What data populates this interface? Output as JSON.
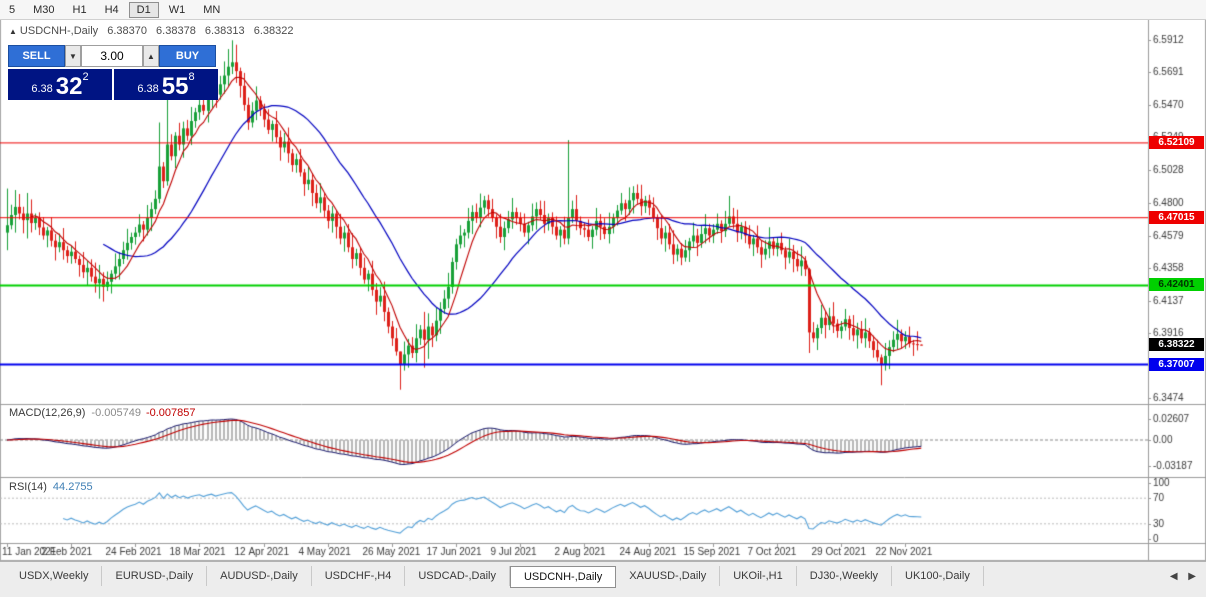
{
  "toolbar": {
    "timeframes": [
      {
        "label": "5",
        "active": false
      },
      {
        "label": "M30",
        "active": false
      },
      {
        "label": "H1",
        "active": false
      },
      {
        "label": "H4",
        "active": false
      },
      {
        "label": "D1",
        "active": true
      },
      {
        "label": "W1",
        "active": false
      },
      {
        "label": "MN",
        "active": false
      }
    ]
  },
  "chart": {
    "symbol_title": "USDCNH-,Daily",
    "ohlc": {
      "open": "6.38370",
      "high": "6.38378",
      "low": "6.38313",
      "close": "6.38322"
    },
    "trade_panel": {
      "sell_label": "SELL",
      "buy_label": "BUY",
      "volume": "3.00",
      "sell_price": {
        "prefix": "6.38",
        "big": "32",
        "sup": "2"
      },
      "buy_price": {
        "prefix": "6.38",
        "big": "55",
        "sup": "8"
      }
    },
    "price_axis": {
      "ticks": [
        {
          "label": "6.5912",
          "value": 6.5912
        },
        {
          "label": "6.5691",
          "value": 6.5691
        },
        {
          "label": "6.5470",
          "value": 6.547
        },
        {
          "label": "6.5249",
          "value": 6.5249
        },
        {
          "label": "6.5028",
          "value": 6.5028
        },
        {
          "label": "6.4800",
          "value": 6.48
        },
        {
          "label": "6.4579",
          "value": 6.4579
        },
        {
          "label": "6.4358",
          "value": 6.4358
        },
        {
          "label": "6.4137",
          "value": 6.4137
        },
        {
          "label": "6.3916",
          "value": 6.3916
        },
        {
          "label": "6.3695",
          "value": 6.3695
        },
        {
          "label": "6.3474",
          "value": 6.3474
        }
      ]
    },
    "hlines": [
      {
        "label": "6.52109",
        "value": 6.52109,
        "color": "#ee0000",
        "text_color": "#ffffff",
        "width": 1
      },
      {
        "label": "6.47015",
        "value": 6.47015,
        "color": "#ee0000",
        "text_color": "#ffffff",
        "width": 1
      },
      {
        "label": "6.42401",
        "value": 6.42401,
        "color": "#00d000",
        "text_color": "#003300",
        "width": 2
      },
      {
        "label": "6.37007",
        "value": 6.37007,
        "color": "#0000ee",
        "text_color": "#ffffff",
        "width": 2
      }
    ],
    "current_price": {
      "label": "6.38322",
      "value": 6.38322,
      "bg": "#000000",
      "text_color": "#ffffff"
    },
    "date_axis": {
      "labels": [
        {
          "text": "11 Jan 2021",
          "index": 0
        },
        {
          "text": "2 Feb 2021",
          "index": 16
        },
        {
          "text": "24 Feb 2021",
          "index": 32
        },
        {
          "text": "18 Mar 2021",
          "index": 48
        },
        {
          "text": "12 Apr 2021",
          "index": 64
        },
        {
          "text": "4 May 2021",
          "index": 80
        },
        {
          "text": "26 May 2021",
          "index": 96
        },
        {
          "text": "17 Jun 2021",
          "index": 112
        },
        {
          "text": "9 Jul 2021",
          "index": 128
        },
        {
          "text": "2 Aug 2021",
          "index": 144
        },
        {
          "text": "24 Aug 2021",
          "index": 160
        },
        {
          "text": "15 Sep 2021",
          "index": 176
        },
        {
          "text": "7 Oct 2021",
          "index": 192
        },
        {
          "text": "29 Oct 2021",
          "index": 208
        },
        {
          "text": "22 Nov 2021",
          "index": 224
        }
      ]
    },
    "colors": {
      "bull": "#18a038",
      "bear": "#dd2019",
      "ma_fast": "#c00000",
      "ma_slow": "#0000c0",
      "hist": "#b8b8b8",
      "macd_line": "#1a1a6e",
      "signal_line": "#c00000",
      "rsi_line": "#53a0d8",
      "axis_text": "#3c3c3c",
      "separator": "#9a9a9a",
      "level_dotted": "#bbbbbb"
    }
  },
  "macd_panel": {
    "label": "MACD(12,26,9)",
    "value_main": "-0.005749",
    "value_signal": "-0.007857",
    "ticks": [
      {
        "label": "0.02607",
        "value": 0.02607
      },
      {
        "label": "0.00",
        "value": 0
      },
      {
        "label": "-0.03187",
        "value": -0.03187
      }
    ]
  },
  "rsi_panel": {
    "label": "RSI(14)",
    "value": "44.2755",
    "ticks": [
      {
        "label": "100",
        "value": 100
      },
      {
        "label": "70",
        "value": 70
      },
      {
        "label": "30",
        "value": 30
      },
      {
        "label": "0",
        "value": 0
      }
    ],
    "levels": [
      70,
      30
    ]
  },
  "tabbar": {
    "tabs": [
      {
        "label": "USDX,Weekly",
        "active": false
      },
      {
        "label": "EURUSD-,Daily",
        "active": false
      },
      {
        "label": "AUDUSD-,Daily",
        "active": false
      },
      {
        "label": "USDCHF-,H4",
        "active": false
      },
      {
        "label": "USDCAD-,Daily",
        "active": false
      },
      {
        "label": "USDCNH-,Daily",
        "active": true
      },
      {
        "label": "XAUUSD-,Daily",
        "active": false
      },
      {
        "label": "UKOil-,H1",
        "active": false
      },
      {
        "label": "DJ30-,Weekly",
        "active": false
      },
      {
        "label": "UK100-,Daily",
        "active": false
      }
    ],
    "scroll_left": "◀",
    "scroll_right": "▶"
  },
  "chart_data": {
    "type": "candlestick",
    "symbol": "USDCNH",
    "timeframe": "Daily",
    "ylim": [
      6.3429,
      6.6055
    ],
    "first_open": 6.46,
    "closes": [
      6.465,
      6.472,
      6.4775,
      6.473,
      6.4685,
      6.473,
      6.4665,
      6.47,
      6.4635,
      6.458,
      6.4615,
      6.4545,
      6.45,
      6.4535,
      6.448,
      6.444,
      6.447,
      6.442,
      6.438,
      6.433,
      6.436,
      6.43,
      6.4255,
      6.4285,
      6.423,
      6.4265,
      6.432,
      6.437,
      6.442,
      6.448,
      6.453,
      6.457,
      6.46,
      6.4655,
      6.462,
      6.47,
      6.476,
      6.483,
      6.505,
      6.495,
      6.52,
      6.512,
      6.526,
      6.52,
      6.531,
      6.526,
      6.536,
      6.542,
      6.547,
      6.543,
      6.552,
      6.558,
      6.554,
      6.561,
      6.567,
      6.573,
      6.576,
      6.57,
      6.56,
      6.547,
      6.535,
      6.543,
      6.55,
      6.544,
      6.537,
      6.53,
      6.534,
      6.525,
      6.518,
      6.522,
      6.514,
      6.506,
      6.51,
      6.501,
      6.493,
      6.496,
      6.487,
      6.48,
      6.484,
      6.475,
      6.468,
      6.473,
      6.464,
      6.456,
      6.46,
      6.45,
      6.442,
      6.446,
      6.436,
      6.428,
      6.432,
      6.421,
      6.413,
      6.417,
      6.406,
      6.396,
      6.388,
      6.379,
      6.37,
      6.377,
      6.383,
      6.378,
      6.388,
      6.394,
      6.387,
      6.396,
      6.39,
      6.4,
      6.408,
      6.415,
      6.423,
      6.44,
      6.452,
      6.458,
      6.46,
      6.468,
      6.474,
      6.47,
      6.477,
      6.482,
      6.476,
      6.47,
      6.464,
      6.457,
      6.463,
      6.469,
      6.474,
      6.47,
      6.466,
      6.46,
      6.465,
      6.471,
      6.476,
      6.472,
      6.466,
      6.47,
      6.464,
      6.458,
      6.462,
      6.456,
      6.47,
      6.476,
      6.468,
      6.463,
      6.462,
      6.457,
      6.462,
      6.468,
      6.464,
      6.459,
      6.464,
      6.47,
      6.475,
      6.48,
      6.476,
      6.482,
      6.487,
      6.483,
      6.478,
      6.482,
      6.477,
      6.47,
      6.463,
      6.456,
      6.46,
      6.452,
      6.445,
      6.449,
      6.443,
      6.448,
      6.454,
      6.458,
      6.453,
      6.459,
      6.463,
      6.458,
      6.462,
      6.466,
      6.461,
      6.466,
      6.471,
      6.466,
      6.46,
      6.464,
      6.458,
      6.452,
      6.456,
      6.45,
      6.445,
      6.449,
      6.454,
      6.449,
      6.453,
      6.448,
      6.443,
      6.447,
      6.442,
      6.437,
      6.441,
      6.435,
      6.392,
      6.388,
      6.395,
      6.402,
      6.397,
      6.403,
      6.398,
      6.393,
      6.396,
      6.401,
      6.395,
      6.39,
      6.394,
      6.388,
      6.392,
      6.386,
      6.38,
      6.375,
      6.37,
      6.376,
      6.382,
      6.387,
      6.391,
      6.386,
      6.389,
      6.3845,
      6.384,
      6.3837,
      6.3832
    ],
    "wick_pattern": {
      "up": [
        0.0038,
        0.007,
        0.0024,
        0.0088,
        0.0046,
        0.0058,
        0.0096,
        0.003
      ],
      "dn": [
        0.0052,
        0.0028,
        0.008,
        0.004,
        0.009,
        0.0034,
        0.0064,
        0.0046
      ]
    },
    "wick_overrides": {
      "0": [
        6.49,
        6.448
      ],
      "2": [
        6.489,
        6.46
      ],
      "5": [
        6.487,
        6.456
      ],
      "23": [
        6.438,
        6.415
      ],
      "24": [
        6.433,
        6.413
      ],
      "38": [
        6.535,
        6.48
      ],
      "40": [
        6.556,
        6.492
      ],
      "51": [
        6.569,
        6.545
      ],
      "55": [
        6.585,
        6.56
      ],
      "56": [
        6.591,
        6.568
      ],
      "57": [
        6.588,
        6.562
      ],
      "60": [
        6.552,
        6.53
      ],
      "81": [
        6.478,
        6.46
      ],
      "98": [
        6.379,
        6.353
      ],
      "104": [
        6.406,
        6.368
      ],
      "105": [
        6.405,
        6.374
      ],
      "140": [
        6.523,
        6.452
      ],
      "180": [
        6.485,
        6.464
      ],
      "200": [
        6.436,
        6.378
      ],
      "218": [
        6.377,
        6.356
      ],
      "228": [
        6.3838,
        6.3831
      ]
    },
    "ma_fast_period": 7,
    "ma_slow_period": 25,
    "macd": {
      "fast": 12,
      "slow": 26,
      "signal": 9
    },
    "rsi_period": 14
  }
}
